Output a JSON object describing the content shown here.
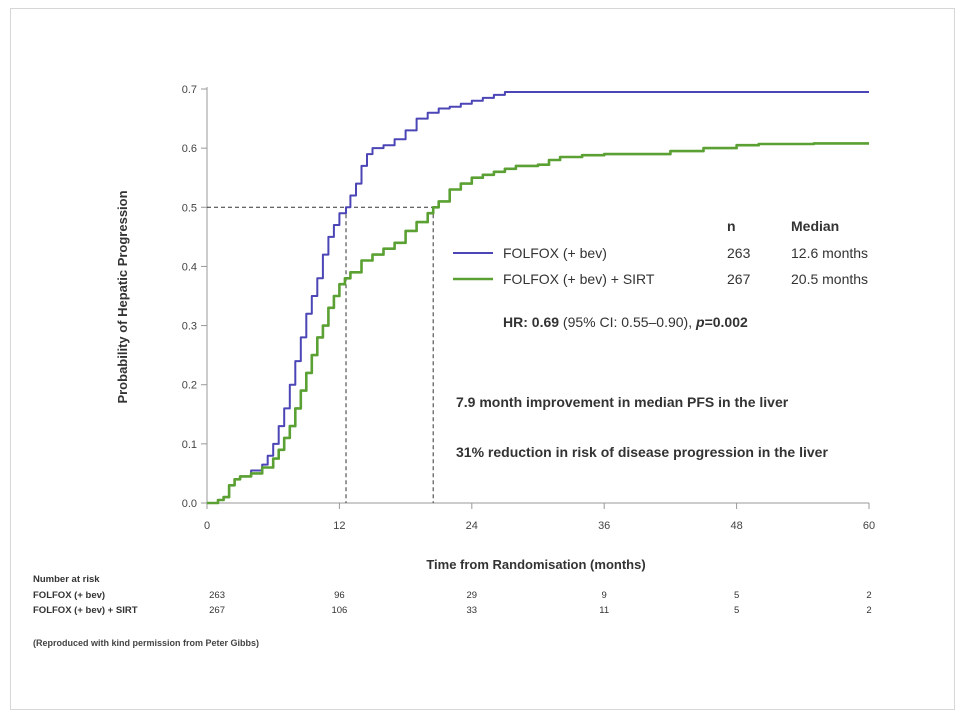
{
  "chart_data": {
    "type": "line",
    "title": "",
    "xlabel": "Time from Randomisation (months)",
    "ylabel": "Probability of  Hepatic Progression",
    "xlim": [
      0,
      60
    ],
    "ylim": [
      0,
      0.7
    ],
    "x_ticks": [
      0,
      12,
      24,
      36,
      48,
      60
    ],
    "y_ticks": [
      0.0,
      0.1,
      0.2,
      0.3,
      0.4,
      0.5,
      0.6,
      0.7
    ],
    "x_tick_labels": [
      "0",
      "12",
      "24",
      "36",
      "48",
      "60"
    ],
    "y_tick_labels": [
      "0.0",
      "0.1",
      "0.2",
      "0.3",
      "0.4",
      "0.5",
      "0.6",
      "0.7"
    ],
    "series": [
      {
        "name": "FOLFOX (+ bev)",
        "color": "#4b45b5",
        "n": "263",
        "median": "12.6 months",
        "median_value": 12.6,
        "points": [
          [
            0,
            0
          ],
          [
            0.5,
            0
          ],
          [
            1,
            0.005
          ],
          [
            1.5,
            0.01
          ],
          [
            2,
            0.03
          ],
          [
            2.5,
            0.04
          ],
          [
            3,
            0.045
          ],
          [
            4,
            0.055
          ],
          [
            5,
            0.065
          ],
          [
            5.5,
            0.08
          ],
          [
            6,
            0.1
          ],
          [
            6.5,
            0.13
          ],
          [
            7,
            0.16
          ],
          [
            7.5,
            0.2
          ],
          [
            8,
            0.24
          ],
          [
            8.5,
            0.28
          ],
          [
            9,
            0.32
          ],
          [
            9.5,
            0.35
          ],
          [
            10,
            0.38
          ],
          [
            10.5,
            0.42
          ],
          [
            11,
            0.45
          ],
          [
            11.5,
            0.47
          ],
          [
            12,
            0.49
          ],
          [
            12.6,
            0.5
          ],
          [
            13,
            0.52
          ],
          [
            13.5,
            0.54
          ],
          [
            14,
            0.57
          ],
          [
            14.5,
            0.59
          ],
          [
            15,
            0.6
          ],
          [
            16,
            0.605
          ],
          [
            17,
            0.615
          ],
          [
            18,
            0.63
          ],
          [
            19,
            0.65
          ],
          [
            20,
            0.66
          ],
          [
            21,
            0.667
          ],
          [
            22,
            0.67
          ],
          [
            23,
            0.675
          ],
          [
            24,
            0.68
          ],
          [
            25,
            0.685
          ],
          [
            26,
            0.69
          ],
          [
            27,
            0.695
          ],
          [
            30,
            0.695
          ],
          [
            40,
            0.695
          ],
          [
            50,
            0.695
          ],
          [
            60,
            0.695
          ]
        ]
      },
      {
        "name": "FOLFOX (+ bev) + SIRT",
        "color": "#5aa032",
        "n": "267",
        "median": "20.5 months",
        "median_value": 20.5,
        "points": [
          [
            0,
            0
          ],
          [
            0.5,
            0
          ],
          [
            1,
            0.005
          ],
          [
            1.5,
            0.01
          ],
          [
            2,
            0.03
          ],
          [
            2.5,
            0.04
          ],
          [
            3,
            0.045
          ],
          [
            4,
            0.05
          ],
          [
            5,
            0.06
          ],
          [
            6,
            0.075
          ],
          [
            6.5,
            0.09
          ],
          [
            7,
            0.11
          ],
          [
            7.5,
            0.13
          ],
          [
            8,
            0.16
          ],
          [
            8.5,
            0.19
          ],
          [
            9,
            0.22
          ],
          [
            9.5,
            0.25
          ],
          [
            10,
            0.28
          ],
          [
            10.5,
            0.3
          ],
          [
            11,
            0.33
          ],
          [
            11.5,
            0.35
          ],
          [
            12,
            0.37
          ],
          [
            12.5,
            0.38
          ],
          [
            13,
            0.39
          ],
          [
            14,
            0.41
          ],
          [
            15,
            0.42
          ],
          [
            16,
            0.43
          ],
          [
            17,
            0.44
          ],
          [
            18,
            0.46
          ],
          [
            19,
            0.475
          ],
          [
            20,
            0.49
          ],
          [
            20.5,
            0.5
          ],
          [
            21,
            0.51
          ],
          [
            22,
            0.53
          ],
          [
            23,
            0.54
          ],
          [
            24,
            0.55
          ],
          [
            25,
            0.555
          ],
          [
            26,
            0.56
          ],
          [
            27,
            0.565
          ],
          [
            28,
            0.57
          ],
          [
            30,
            0.572
          ],
          [
            31,
            0.58
          ],
          [
            32,
            0.585
          ],
          [
            34,
            0.588
          ],
          [
            36,
            0.59
          ],
          [
            40,
            0.59
          ],
          [
            42,
            0.595
          ],
          [
            45,
            0.6
          ],
          [
            48,
            0.605
          ],
          [
            50,
            0.607
          ],
          [
            55,
            0.608
          ],
          [
            60,
            0.608
          ]
        ]
      }
    ],
    "legend": {
      "position": "right",
      "header_n": "n",
      "header_median": "Median"
    },
    "hazard_ratio": {
      "label": "HR:",
      "value": "0.69",
      "ci": "(95% CI: 0.55–0.90),",
      "p_label": "p",
      "p_value": "=0.002"
    },
    "annotations": [
      "7.9 month improvement in median PFS in the liver",
      "31% reduction in risk of disease progression in the liver"
    ],
    "number_at_risk": {
      "title": "Number at risk",
      "times": [
        0,
        12,
        24,
        36,
        48,
        60
      ],
      "rows": [
        {
          "label": "FOLFOX (+ bev)",
          "values": [
            "263",
            "96",
            "29",
            "9",
            "5",
            "2"
          ]
        },
        {
          "label": "FOLFOX (+ bev) + SIRT",
          "values": [
            "267",
            "106",
            "33",
            "11",
            "5",
            "2"
          ]
        }
      ]
    },
    "reference_line_y": 0.5,
    "grid": false
  },
  "credit": "(Reproduced with kind permission from Peter Gibbs)"
}
